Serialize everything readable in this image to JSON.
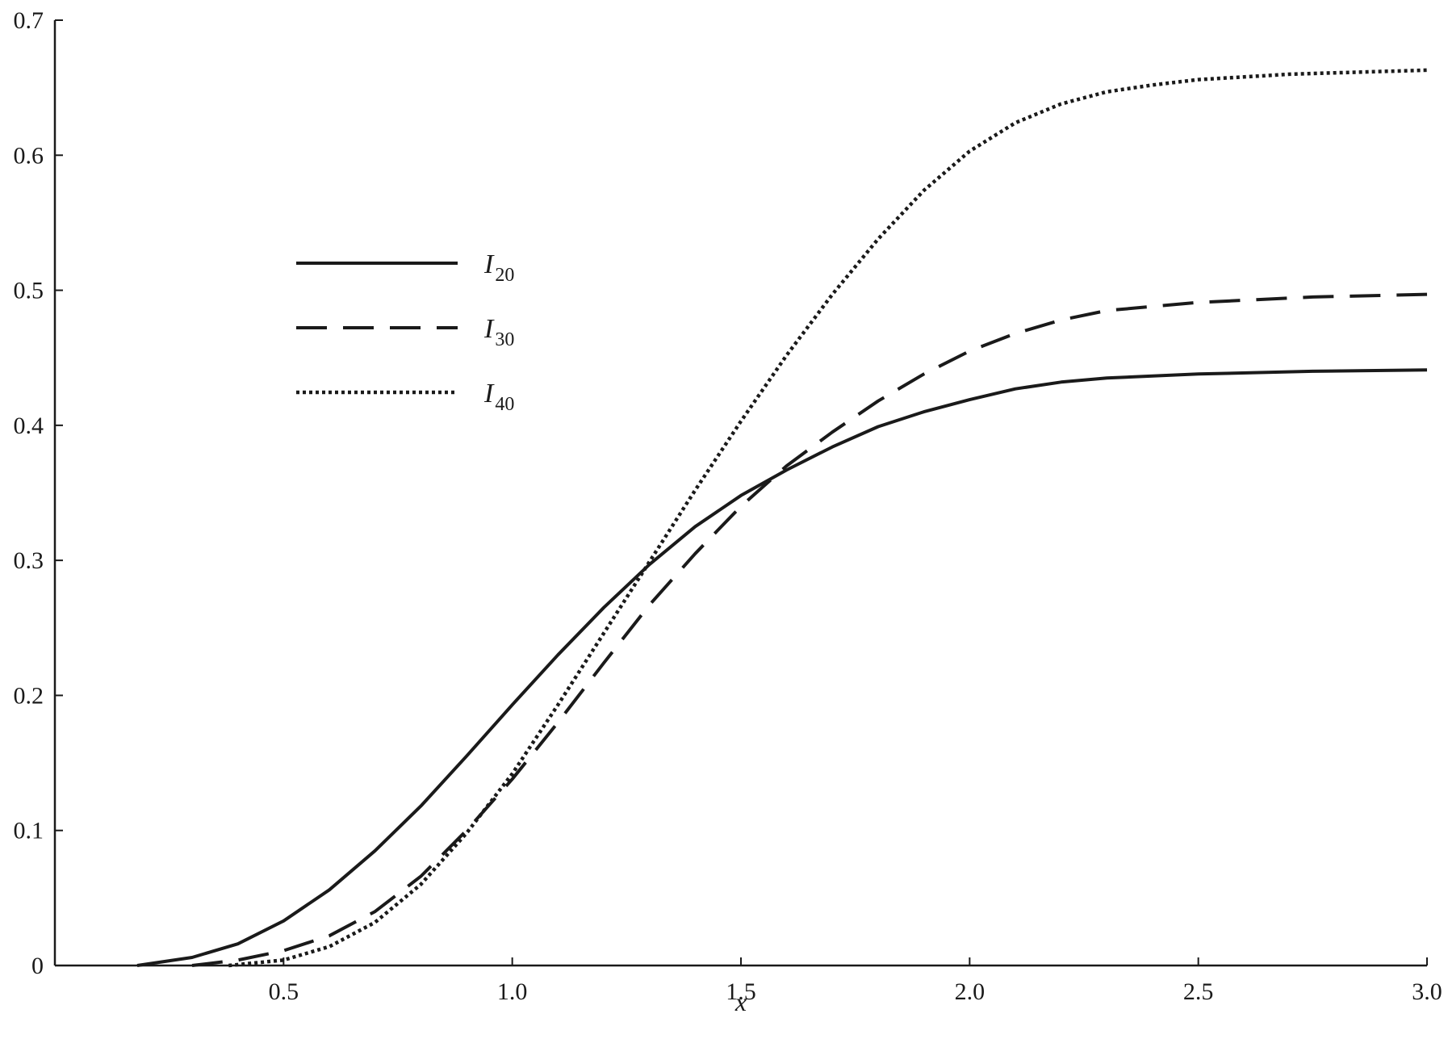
{
  "chart_data": {
    "type": "line",
    "xlabel": "x",
    "ylabel": "",
    "xlim": [
      0,
      3.0
    ],
    "ylim": [
      0,
      0.7
    ],
    "x_ticks": [
      0.5,
      1.0,
      1.5,
      2.0,
      2.5,
      3.0
    ],
    "x_tick_labels": [
      "0.5",
      "1.0",
      "1.5",
      "2.0",
      "2.5",
      "3.0"
    ],
    "y_ticks": [
      0,
      0.1,
      0.2,
      0.3,
      0.4,
      0.5,
      0.6,
      0.7
    ],
    "y_tick_labels": [
      "0",
      "0.1",
      "0.2",
      "0.3",
      "0.4",
      "0.5",
      "0.6",
      "0.7"
    ],
    "grid": false,
    "legend_position": "upper-left",
    "color": "#1a1a1a",
    "series": [
      {
        "name": "I",
        "subscript": "20",
        "style": "solid",
        "x": [
          0.18,
          0.3,
          0.4,
          0.5,
          0.6,
          0.7,
          0.8,
          0.9,
          1.0,
          1.1,
          1.2,
          1.3,
          1.4,
          1.5,
          1.6,
          1.7,
          1.8,
          1.9,
          2.0,
          2.1,
          2.2,
          2.3,
          2.5,
          2.75,
          3.0
        ],
        "y": [
          0.0,
          0.006,
          0.016,
          0.033,
          0.056,
          0.085,
          0.118,
          0.155,
          0.193,
          0.23,
          0.265,
          0.297,
          0.325,
          0.348,
          0.367,
          0.384,
          0.399,
          0.41,
          0.419,
          0.427,
          0.432,
          0.435,
          0.438,
          0.44,
          0.441
        ]
      },
      {
        "name": "I",
        "subscript": "30",
        "style": "dashed",
        "x": [
          0.3,
          0.4,
          0.5,
          0.6,
          0.7,
          0.8,
          0.9,
          1.0,
          1.1,
          1.2,
          1.3,
          1.4,
          1.5,
          1.6,
          1.7,
          1.8,
          1.9,
          2.0,
          2.1,
          2.2,
          2.3,
          2.5,
          2.75,
          3.0
        ],
        "y": [
          0.0,
          0.004,
          0.011,
          0.022,
          0.04,
          0.066,
          0.1,
          0.138,
          0.18,
          0.224,
          0.267,
          0.305,
          0.34,
          0.37,
          0.395,
          0.418,
          0.438,
          0.455,
          0.468,
          0.478,
          0.485,
          0.491,
          0.495,
          0.497
        ]
      },
      {
        "name": "I",
        "subscript": "40",
        "style": "dotted",
        "x": [
          0.38,
          0.5,
          0.6,
          0.7,
          0.8,
          0.9,
          1.0,
          1.1,
          1.2,
          1.3,
          1.4,
          1.5,
          1.6,
          1.7,
          1.8,
          1.9,
          2.0,
          2.1,
          2.2,
          2.3,
          2.4,
          2.5,
          2.6,
          2.7,
          2.8,
          3.0
        ],
        "y": [
          0.0,
          0.004,
          0.014,
          0.032,
          0.06,
          0.098,
          0.142,
          0.193,
          0.246,
          0.299,
          0.352,
          0.403,
          0.452,
          0.497,
          0.538,
          0.574,
          0.603,
          0.624,
          0.638,
          0.647,
          0.652,
          0.656,
          0.658,
          0.66,
          0.661,
          0.663
        ]
      }
    ]
  }
}
